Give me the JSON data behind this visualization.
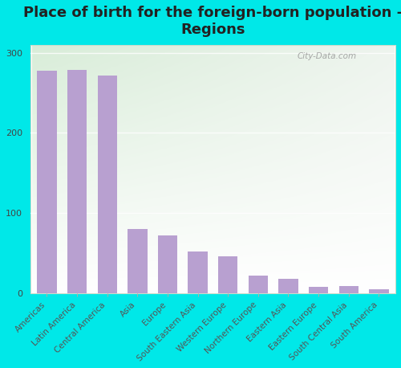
{
  "title": "Place of birth for the foreign-born population -\nRegions",
  "categories": [
    "Americas",
    "Latin America",
    "Central America",
    "Asia",
    "Europe",
    "South Eastern Asia",
    "Western Europe",
    "Northern Europe",
    "Eastern Asia",
    "Eastern Europe",
    "South Central Asia",
    "South America"
  ],
  "values": [
    278,
    279,
    272,
    80,
    72,
    52,
    46,
    22,
    18,
    8,
    9,
    5
  ],
  "bar_color": "#b8a0d0",
  "background_color": "#00e8e8",
  "plot_bg_topleft": "#d8edd8",
  "plot_bg_topright": "#eef4ee",
  "plot_bg_bottom": "#ffffff",
  "ylabel_ticks": [
    0,
    100,
    200,
    300
  ],
  "ylim": [
    0,
    310
  ],
  "title_fontsize": 13,
  "tick_fontsize": 8,
  "watermark": "City-Data.com"
}
